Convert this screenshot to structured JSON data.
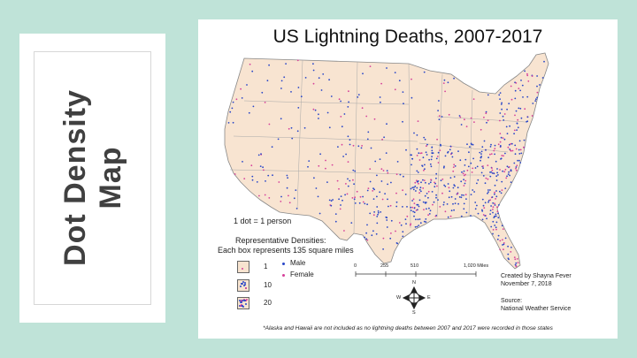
{
  "side_card": {
    "title_line1": "Dot Density",
    "title_line2": "Map"
  },
  "map": {
    "title": "US Lightning Deaths, 2007-2017",
    "colors": {
      "land": "#f8e4d1",
      "male": "#2846c8",
      "female": "#d6409a",
      "border": "#888888"
    },
    "legend": {
      "dot_unit": "1 dot = 1 person",
      "rep_title": "Representative Densities:",
      "rep_subtitle": "Each box represents 135 square miles",
      "densities": [
        "1",
        "10",
        "20"
      ],
      "male_label": "Male",
      "female_label": "Female"
    },
    "scale": {
      "ticks": [
        "0",
        "255",
        "510",
        "1,020 Miles"
      ]
    },
    "compass": {
      "n": "N",
      "s": "S",
      "e": "E",
      "w": "W"
    },
    "credit": {
      "line1": "Created by Shayna Fever",
      "line2": "November 7, 2018",
      "source_label": "Source:",
      "source": "National Weather Service"
    },
    "footnote": "*Alaska and Hawaii are not included as no lightning deaths between 2007 and 2017 were recorded in those states"
  }
}
